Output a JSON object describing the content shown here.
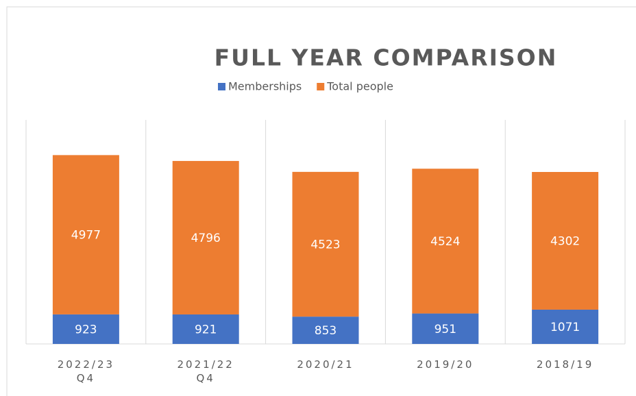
{
  "chart_data": {
    "type": "stacked_bar",
    "title": "FULL YEAR COMPARISON",
    "categories": [
      "2022/23 Q4",
      "2021/22 Q4",
      "2020/21",
      "2019/20",
      "2018/19"
    ],
    "series": [
      {
        "name": "Memberships",
        "color": "#4472c4",
        "values": [
          923,
          921,
          853,
          951,
          1071
        ]
      },
      {
        "name": "Total people",
        "color": "#ed7d31",
        "values": [
          4977,
          4796,
          4523,
          4524,
          4302
        ]
      }
    ],
    "ylim": [
      0,
      7000
    ],
    "legend": "top"
  }
}
